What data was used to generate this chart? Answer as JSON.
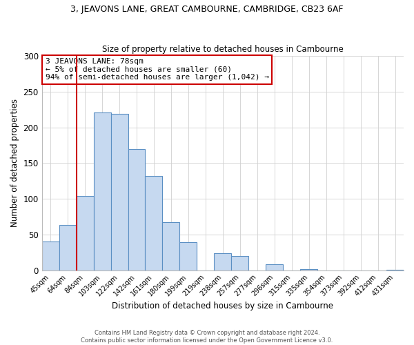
{
  "title": "3, JEAVONS LANE, GREAT CAMBOURNE, CAMBRIDGE, CB23 6AF",
  "subtitle": "Size of property relative to detached houses in Cambourne",
  "xlabel": "Distribution of detached houses by size in Cambourne",
  "ylabel": "Number of detached properties",
  "footer_line1": "Contains HM Land Registry data © Crown copyright and database right 2024.",
  "footer_line2": "Contains public sector information licensed under the Open Government Licence v3.0.",
  "categories": [
    "45sqm",
    "64sqm",
    "84sqm",
    "103sqm",
    "122sqm",
    "142sqm",
    "161sqm",
    "180sqm",
    "199sqm",
    "219sqm",
    "238sqm",
    "257sqm",
    "277sqm",
    "296sqm",
    "315sqm",
    "335sqm",
    "354sqm",
    "373sqm",
    "392sqm",
    "412sqm",
    "431sqm"
  ],
  "values": [
    40,
    63,
    104,
    221,
    219,
    170,
    132,
    67,
    39,
    0,
    24,
    20,
    0,
    8,
    0,
    2,
    0,
    0,
    0,
    0,
    1
  ],
  "bar_color": "#c6d9f0",
  "bar_edge_color": "#5a8fc3",
  "highlight_color": "#cc0000",
  "annotation_title": "3 JEAVONS LANE: 78sqm",
  "annotation_line1": "← 5% of detached houses are smaller (60)",
  "annotation_line2": "94% of semi-detached houses are larger (1,042) →",
  "annotation_box_color": "#ffffff",
  "annotation_box_edge_color": "#cc0000",
  "ylim": [
    0,
    300
  ],
  "yticks": [
    0,
    50,
    100,
    150,
    200,
    250,
    300
  ],
  "red_line_x": 1.5
}
